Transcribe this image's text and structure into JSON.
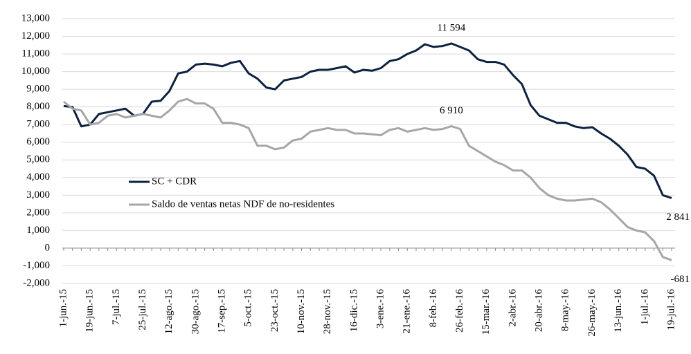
{
  "chart_data": {
    "type": "line",
    "categories": [
      "1-jun.-15",
      null,
      null,
      "19-jun.-15",
      null,
      null,
      "7-jul.-15",
      null,
      null,
      "25-jul.-15",
      null,
      null,
      "12-ago.-15",
      null,
      null,
      "30-ago.-15",
      null,
      null,
      "17-sep.-15",
      null,
      null,
      "5-oct.-15",
      null,
      null,
      "23-oct.-15",
      null,
      null,
      "10-nov.-15",
      null,
      null,
      "28-nov.-15",
      null,
      null,
      "16-dic.-15",
      null,
      null,
      "3-ene.-16",
      null,
      null,
      "21-ene.-16",
      null,
      null,
      "8-feb.-16",
      null,
      null,
      "26-feb.-16",
      null,
      null,
      "15-mar.-16",
      null,
      null,
      "2-abr.-16",
      null,
      null,
      "20-abr.-16",
      null,
      null,
      "8-may.-16",
      null,
      null,
      "26-may.-16",
      null,
      null,
      "13-jun.-16",
      null,
      null,
      "1-jul.-16",
      null,
      null,
      "19-jul.-16"
    ],
    "series": [
      {
        "name": "SC + CDR",
        "color": "#0d2240",
        "values": [
          8050,
          8000,
          6900,
          7000,
          7600,
          7700,
          7800,
          7900,
          7500,
          7600,
          8300,
          8350,
          8900,
          9900,
          10000,
          10400,
          10450,
          10400,
          10300,
          10500,
          10600,
          9900,
          9600,
          9100,
          9000,
          9500,
          9600,
          9700,
          10000,
          10100,
          10100,
          10200,
          10300,
          9950,
          10100,
          10050,
          10200,
          10600,
          10700,
          11000,
          11200,
          11550,
          11400,
          11450,
          11594,
          11400,
          11200,
          10700,
          10550,
          10550,
          10400,
          9800,
          9300,
          8100,
          7500,
          7300,
          7100,
          7100,
          6900,
          6800,
          6850,
          6500,
          6200,
          5800,
          5300,
          4600,
          4500,
          4100,
          3000,
          2841
        ],
        "value_labels": [
          null,
          null,
          null,
          null,
          null,
          null,
          null,
          null,
          null,
          null,
          null,
          null,
          null,
          null,
          null,
          null,
          null,
          null,
          null,
          null,
          null,
          null,
          null,
          null,
          null,
          null,
          null,
          null,
          null,
          null,
          null,
          null,
          null,
          null,
          null,
          null,
          null,
          null,
          null,
          null,
          null,
          null,
          null,
          null,
          "11 594",
          null,
          null,
          null,
          null,
          null,
          null,
          null,
          null,
          null,
          null,
          null,
          null,
          null,
          null,
          null,
          null,
          null,
          null,
          null,
          null,
          null,
          null,
          null,
          null,
          "2 841"
        ]
      },
      {
        "name": "Saldo de ventas netas NDF de no-residentes",
        "color": "#a6a6a6",
        "values": [
          8300,
          7900,
          7800,
          7000,
          7100,
          7500,
          7600,
          7400,
          7500,
          7600,
          7500,
          7400,
          7800,
          8300,
          8450,
          8200,
          8200,
          7900,
          7100,
          7100,
          7000,
          6800,
          5800,
          5800,
          5600,
          5700,
          6100,
          6200,
          6600,
          6700,
          6800,
          6700,
          6700,
          6500,
          6500,
          6450,
          6400,
          6700,
          6800,
          6600,
          6700,
          6800,
          6700,
          6750,
          6910,
          6750,
          5800,
          5500,
          5200,
          4900,
          4700,
          4400,
          4400,
          4000,
          3400,
          3000,
          2800,
          2700,
          2700,
          2750,
          2800,
          2600,
          2200,
          1700,
          1200,
          1000,
          900,
          400,
          -500,
          -681
        ],
        "value_labels": [
          null,
          null,
          null,
          null,
          null,
          null,
          null,
          null,
          null,
          null,
          null,
          null,
          null,
          null,
          null,
          null,
          null,
          null,
          null,
          null,
          null,
          null,
          null,
          null,
          null,
          null,
          null,
          null,
          null,
          null,
          null,
          null,
          null,
          null,
          null,
          null,
          null,
          null,
          null,
          null,
          null,
          null,
          null,
          null,
          "6 910",
          null,
          null,
          null,
          null,
          null,
          null,
          null,
          null,
          null,
          null,
          null,
          null,
          null,
          null,
          null,
          null,
          null,
          null,
          null,
          null,
          null,
          null,
          null,
          null,
          "-681"
        ]
      }
    ],
    "ylim": [
      -2000,
      13000
    ],
    "yticks": [
      {
        "value": -2000,
        "label": "-2,000"
      },
      {
        "value": -1000,
        "label": "-1,000"
      },
      0,
      {
        "value": 1000,
        "label": "1,000"
      },
      {
        "value": 2000,
        "label": "2,000"
      },
      {
        "value": 3000,
        "label": "3,000"
      },
      {
        "value": 4000,
        "label": "4,000"
      },
      {
        "value": 5000,
        "label": "5,000"
      },
      {
        "value": 6000,
        "label": "6,000"
      },
      {
        "value": 7000,
        "label": "7,000"
      },
      {
        "value": 8000,
        "label": "8,000"
      },
      {
        "value": 9000,
        "label": "9,000"
      },
      {
        "value": 10000,
        "label": "10,000"
      },
      {
        "value": 11000,
        "label": "11,000"
      },
      {
        "value": 12000,
        "label": "12,000"
      },
      {
        "value": 13000,
        "label": "13,000"
      }
    ],
    "grid": true,
    "legend": "left"
  }
}
